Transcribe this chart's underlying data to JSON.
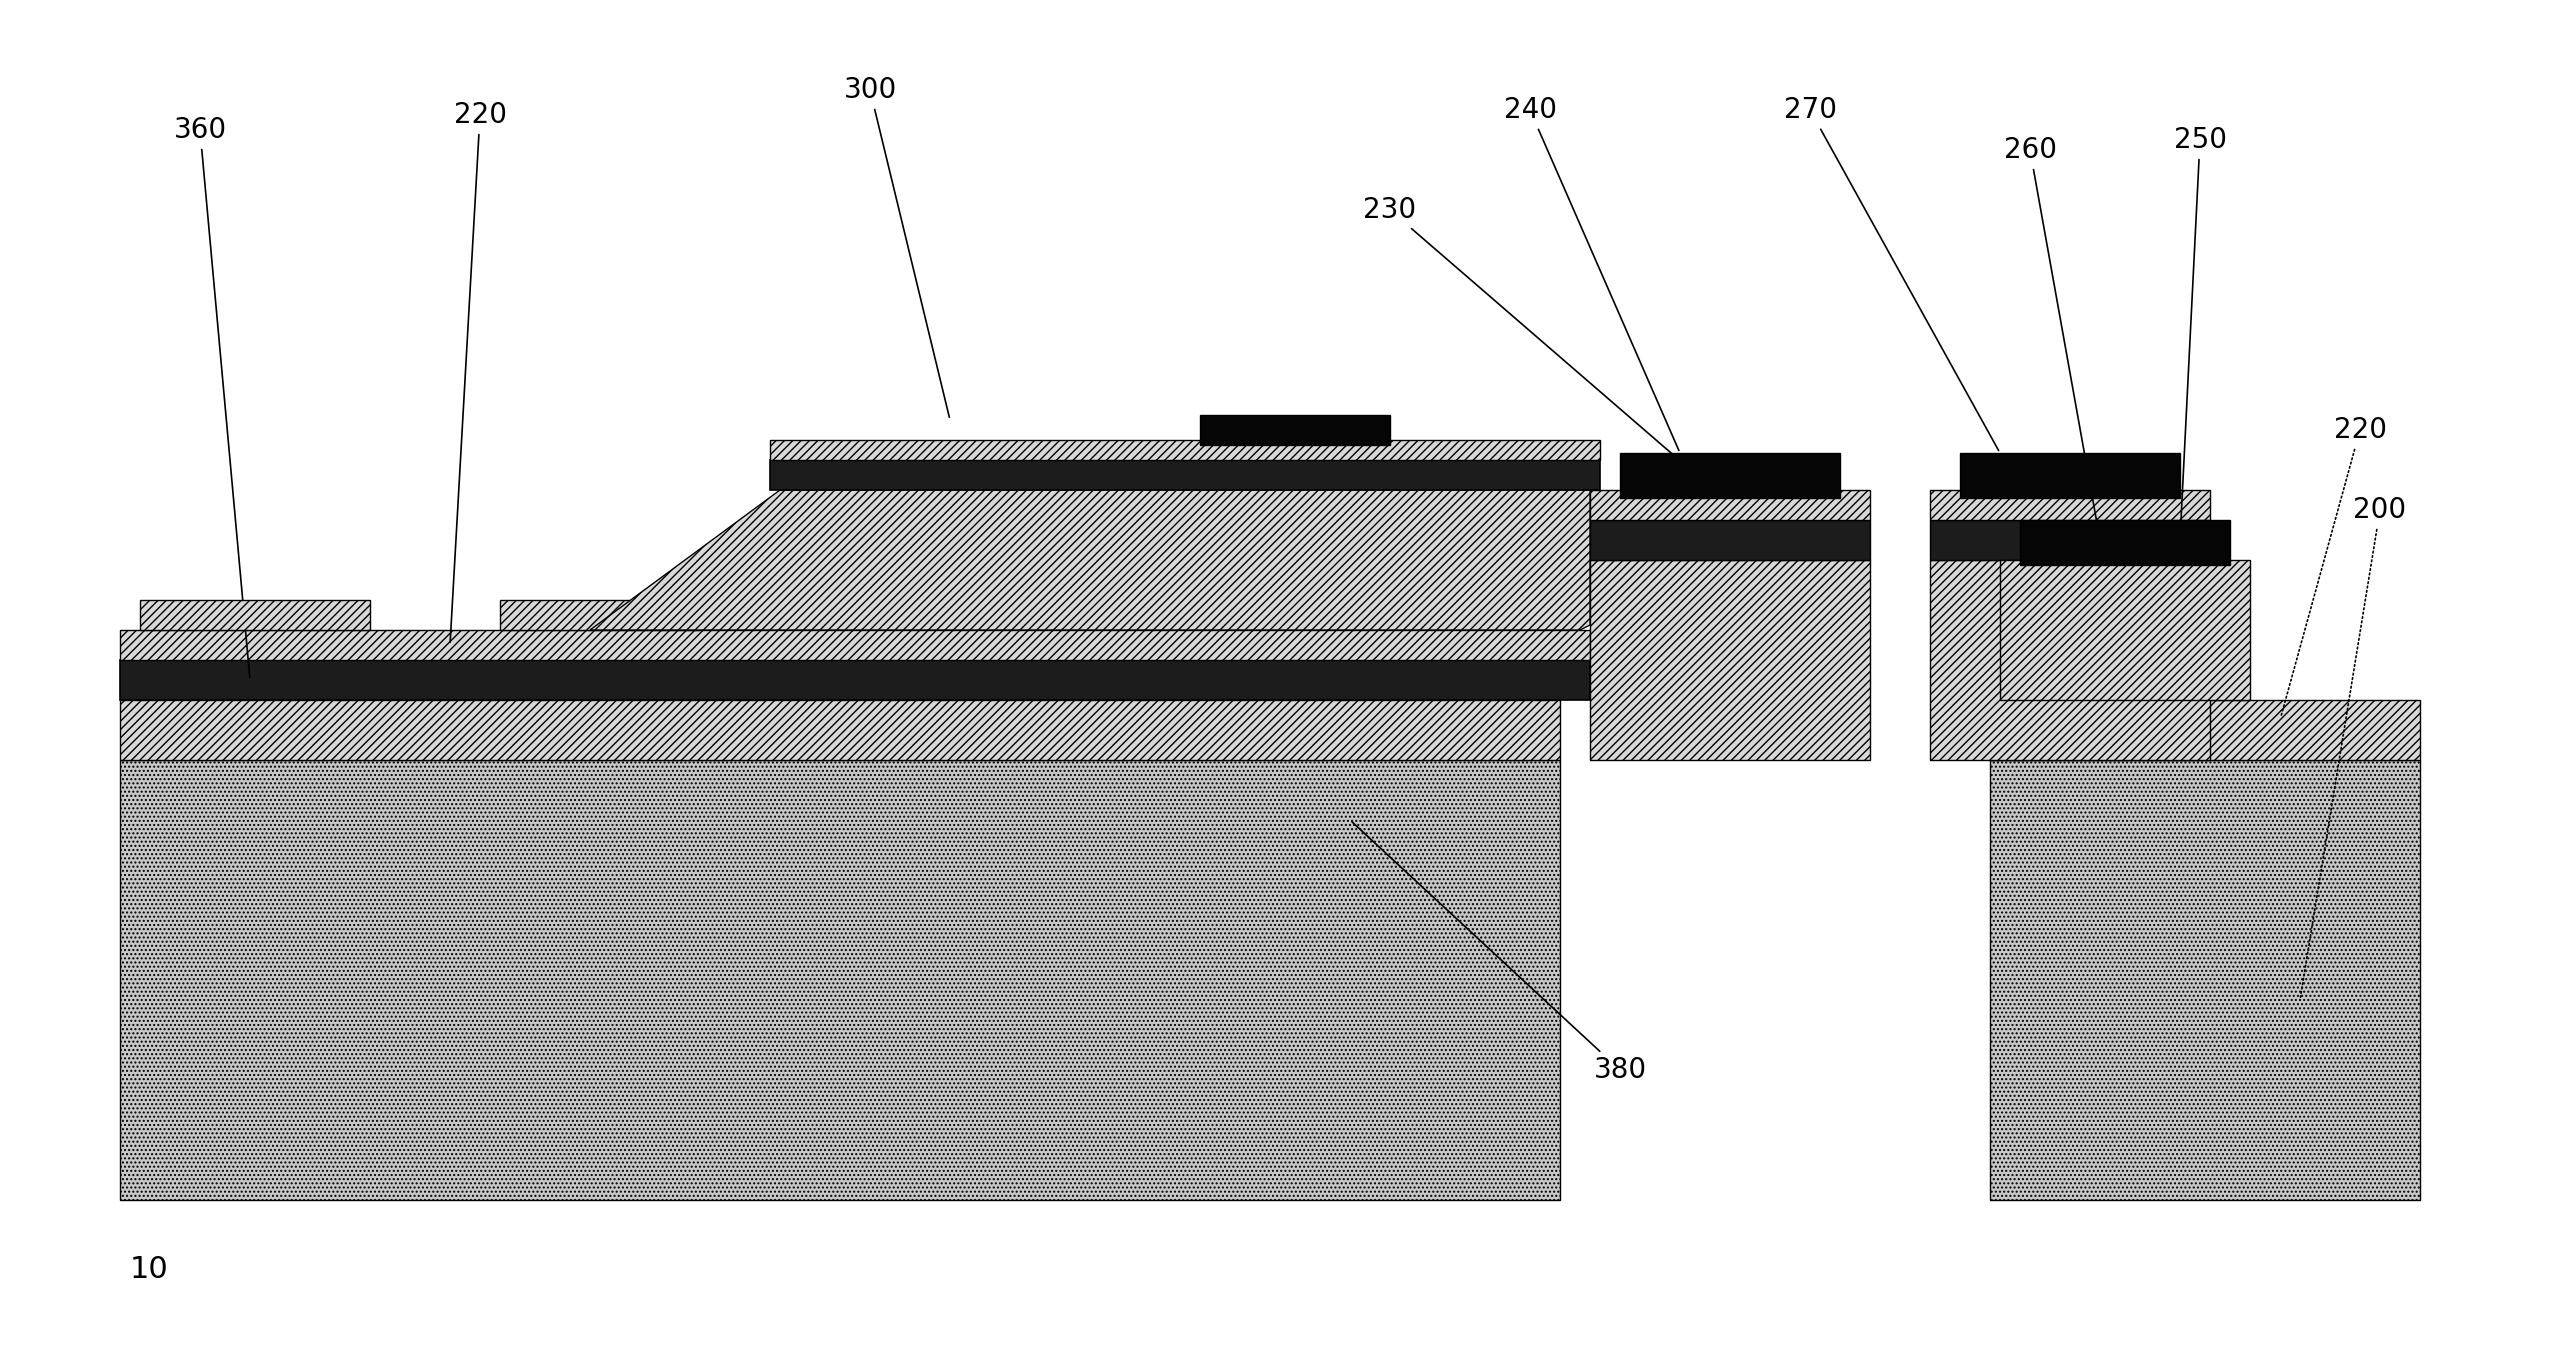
{
  "bg_color": "#ffffff",
  "c_silicon": "#c8c8c8",
  "c_oxide": "#d8d8d8",
  "c_dark": "#1c1c1c",
  "c_black": "#050505",
  "c_white": "#ffffff",
  "hatch_diag": "////",
  "hatch_dot": "....",
  "figure_label": "10",
  "fs": 20
}
